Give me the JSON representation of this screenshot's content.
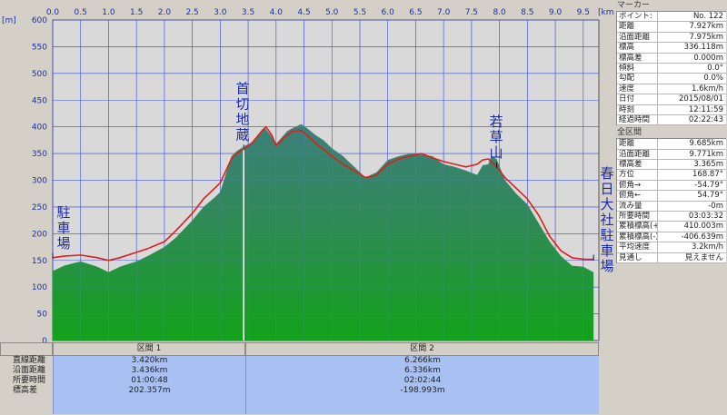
{
  "chart_data": {
    "type": "area",
    "x_unit": "[km]",
    "y_unit": "[m]",
    "xlim": [
      0.0,
      9.685
    ],
    "ylim": [
      0,
      600
    ],
    "x_ticks": [
      "0.0",
      "0.5",
      "1.0",
      "1.5",
      "2.0",
      "2.5",
      "3.0",
      "3.5",
      "4.0",
      "4.5",
      "5.0",
      "5.5",
      "6.0",
      "6.5",
      "7.0",
      "7.5",
      "8.0",
      "8.5",
      "9.0",
      "9.5"
    ],
    "y_ticks": [
      "0",
      "50",
      "100",
      "150",
      "200",
      "250",
      "300",
      "350",
      "400",
      "450",
      "500",
      "550",
      "600"
    ],
    "grid": true,
    "series": [
      {
        "name": "",
        "kind": "terrain",
        "color": "#2f8a6e",
        "x": [
          0.0,
          0.2,
          0.5,
          0.8,
          1.0,
          1.2,
          1.5,
          1.7,
          2.0,
          2.2,
          2.5,
          2.7,
          2.9,
          3.0,
          3.2,
          3.3,
          3.45,
          3.55,
          3.65,
          3.75,
          3.8,
          3.9,
          4.0,
          4.1,
          4.2,
          4.3,
          4.45,
          4.55,
          4.7,
          4.85,
          5.0,
          5.2,
          5.4,
          5.6,
          5.8,
          6.0,
          6.2,
          6.4,
          6.6,
          6.8,
          7.0,
          7.2,
          7.4,
          7.6,
          7.7,
          7.8,
          7.85,
          7.95,
          8.1,
          8.3,
          8.5,
          8.7,
          8.9,
          9.1,
          9.3,
          9.5,
          9.685
        ],
        "y": [
          130,
          140,
          148,
          138,
          128,
          138,
          148,
          158,
          175,
          192,
          225,
          250,
          268,
          278,
          345,
          355,
          365,
          370,
          380,
          395,
          398,
          385,
          368,
          380,
          392,
          398,
          405,
          398,
          385,
          375,
          360,
          345,
          325,
          305,
          315,
          338,
          345,
          350,
          348,
          345,
          330,
          325,
          318,
          310,
          328,
          330,
          345,
          340,
          300,
          275,
          255,
          220,
          185,
          158,
          140,
          138,
          128
        ]
      },
      {
        "name": "",
        "kind": "track",
        "color": "#e02020",
        "x": [
          0.0,
          0.2,
          0.5,
          0.8,
          1.0,
          1.2,
          1.5,
          1.7,
          2.0,
          2.2,
          2.5,
          2.7,
          2.9,
          3.0,
          3.2,
          3.3,
          3.42,
          3.55,
          3.65,
          3.75,
          3.82,
          3.92,
          4.0,
          4.1,
          4.2,
          4.3,
          4.45,
          4.55,
          4.7,
          4.85,
          5.0,
          5.2,
          5.4,
          5.6,
          5.8,
          6.0,
          6.2,
          6.4,
          6.6,
          6.8,
          7.0,
          7.2,
          7.4,
          7.6,
          7.7,
          7.8,
          7.85,
          7.95,
          8.1,
          8.3,
          8.5,
          8.7,
          8.9,
          9.1,
          9.3,
          9.5,
          9.685
        ],
        "y": [
          155,
          158,
          160,
          155,
          150,
          155,
          165,
          172,
          185,
          205,
          238,
          265,
          285,
          295,
          340,
          350,
          358,
          368,
          380,
          393,
          400,
          385,
          365,
          375,
          385,
          392,
          393,
          385,
          370,
          358,
          345,
          330,
          318,
          305,
          310,
          330,
          340,
          345,
          350,
          342,
          335,
          330,
          325,
          330,
          338,
          340,
          335,
          325,
          305,
          285,
          265,
          235,
          195,
          168,
          155,
          152,
          152
        ]
      }
    ],
    "annotations": [
      {
        "text": "駐車場",
        "x": 0.0
      },
      {
        "text": "首切地蔵",
        "x": 3.42
      },
      {
        "text": "若草山",
        "x": 7.95
      },
      {
        "text": "春日大社駐車場",
        "x": 9.685
      }
    ]
  },
  "section_table": {
    "row_labels": [
      "直線距離",
      "沿面距離",
      "所要時間",
      "標高差"
    ],
    "sections": [
      {
        "title": "区間 1",
        "values": [
          "3.420km",
          "3.436km",
          "01:00:48",
          "202.357m"
        ]
      },
      {
        "title": "区間 2",
        "values": [
          "6.266km",
          "6.336km",
          "02:02:44",
          "-198.993m"
        ]
      }
    ]
  },
  "marker_panel": {
    "title": "マーカー",
    "rows": [
      {
        "label": "ポイント:",
        "value": "No. 122"
      },
      {
        "label": "距離",
        "value": "7.927km"
      },
      {
        "label": "沿面距離",
        "value": "7.975km"
      },
      {
        "label": "標高",
        "value": "336.118m"
      },
      {
        "label": "標高差",
        "value": "0.000m"
      },
      {
        "label": "傾斜",
        "value": "0.0°"
      },
      {
        "label": "勾配",
        "value": "0.0%"
      },
      {
        "label": "速度",
        "value": "1.6km/h"
      },
      {
        "label": "日付",
        "value": "2015/08/01"
      },
      {
        "label": "時刻",
        "value": "12:11:59"
      },
      {
        "label": "経過時間",
        "value": "02:22:43"
      }
    ]
  },
  "total_panel": {
    "title": "全区間",
    "rows": [
      {
        "label": "距離",
        "value": "9.685km"
      },
      {
        "label": "沿面距離",
        "value": "9.771km"
      },
      {
        "label": "標高差",
        "value": "3.365m"
      },
      {
        "label": "方位",
        "value": "168.87°"
      },
      {
        "label": "俯角→",
        "value": "-54.79°"
      },
      {
        "label": "俯角←",
        "value": "54.79°"
      },
      {
        "label": "流み量",
        "value": "-0m"
      },
      {
        "label": "所要時間",
        "value": "03:03:32"
      },
      {
        "label": "累積標高(+)",
        "value": "410.003m"
      },
      {
        "label": "累積標高(-)",
        "value": "-406.639m"
      },
      {
        "label": "平均速度",
        "value": "3.2km/h"
      },
      {
        "label": "見通し",
        "value": "見えません"
      }
    ]
  }
}
